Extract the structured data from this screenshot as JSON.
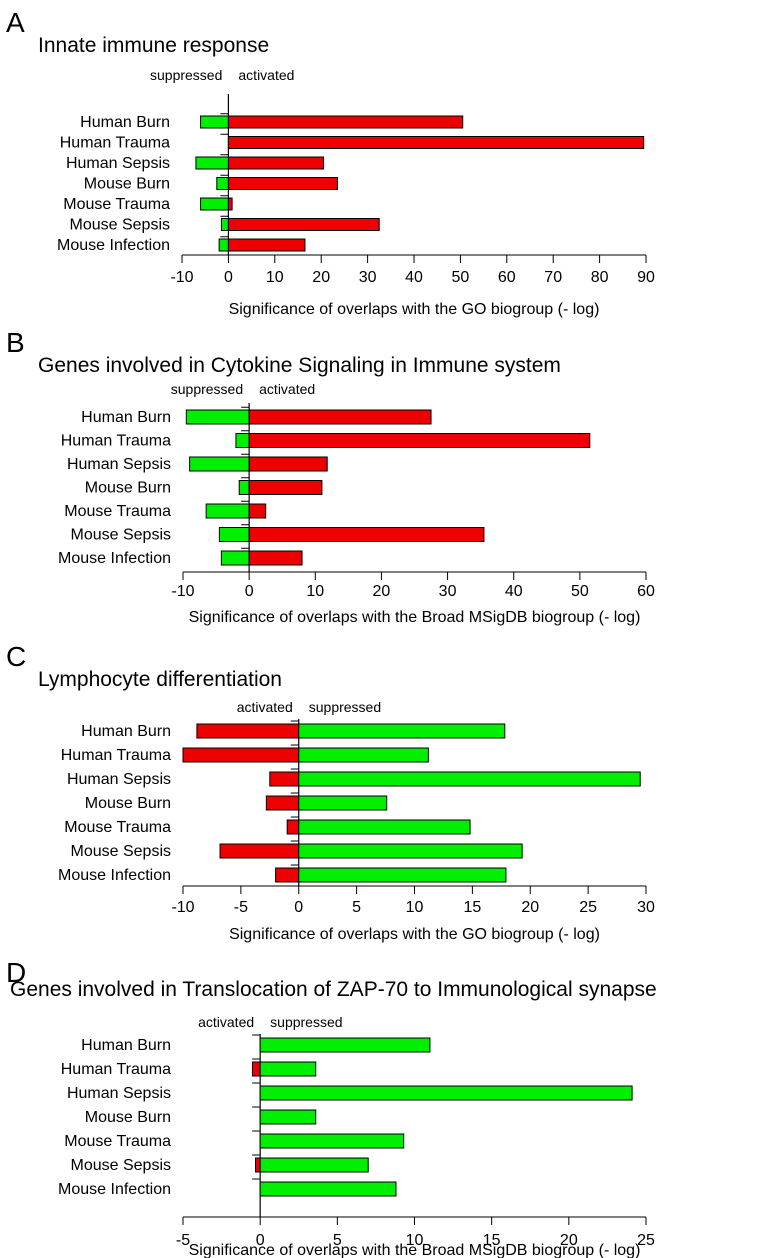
{
  "chart_data": [
    {
      "type": "bar",
      "orientation": "horizontal",
      "panel": "A",
      "title": "Innate immune response",
      "categories": [
        "Human Burn",
        "Human Trauma",
        "Human Sepsis",
        "Mouse Burn",
        "Mouse Trauma",
        "Mouse Sepsis",
        "Mouse Infection"
      ],
      "series": [
        {
          "name": "suppressed",
          "color": "#00ee00",
          "values": [
            -6,
            0,
            -7,
            -2.5,
            -6,
            -1.5,
            -2
          ]
        },
        {
          "name": "activated",
          "color": "#ee0000",
          "values": [
            50.5,
            89.5,
            20.5,
            23.5,
            0.8,
            32.5,
            16.5
          ]
        }
      ],
      "left_label": "suppressed",
      "right_label": "activated",
      "xlabel": "Significance of overlaps with the GO biogroup (- log)",
      "xlim": [
        -10,
        90
      ],
      "xticks": [
        -10,
        0,
        10,
        20,
        30,
        40,
        50,
        60,
        70,
        80,
        90
      ]
    },
    {
      "type": "bar",
      "orientation": "horizontal",
      "panel": "B",
      "title": "Genes involved in Cytokine Signaling in Immune system",
      "categories": [
        "Human Burn",
        "Human Trauma",
        "Human Sepsis",
        "Mouse Burn",
        "Mouse Trauma",
        "Mouse Sepsis",
        "Mouse Infection"
      ],
      "series": [
        {
          "name": "suppressed",
          "color": "#00ee00",
          "values": [
            -9.5,
            -2,
            -9,
            -1.5,
            -6.5,
            -4.5,
            -4.2
          ]
        },
        {
          "name": "activated",
          "color": "#ee0000",
          "values": [
            27.5,
            51.5,
            11.8,
            11,
            2.5,
            35.5,
            8
          ]
        }
      ],
      "left_label": "suppressed",
      "right_label": "activated",
      "xlabel": "Significance of overlaps with the Broad MSigDB biogroup (- log)",
      "xlim": [
        -10,
        60
      ],
      "xticks": [
        -10,
        0,
        10,
        20,
        30,
        40,
        50,
        60
      ]
    },
    {
      "type": "bar",
      "orientation": "horizontal",
      "panel": "C",
      "title": "Lymphocyte differentiation",
      "categories": [
        "Human Burn",
        "Human Trauma",
        "Human Sepsis",
        "Mouse Burn",
        "Mouse Trauma",
        "Mouse Sepsis",
        "Mouse Infection"
      ],
      "series": [
        {
          "name": "activated",
          "color": "#ee0000",
          "values": [
            -8.8,
            -10,
            -2.5,
            -2.8,
            -1,
            -6.8,
            -2
          ]
        },
        {
          "name": "suppressed",
          "color": "#00ee00",
          "values": [
            17.8,
            11.2,
            29.5,
            7.6,
            14.8,
            19.3,
            17.9
          ]
        }
      ],
      "left_label": "activated",
      "right_label": "suppressed",
      "xlabel": "Significance of overlaps with the GO biogroup (- log)",
      "xlim": [
        -10,
        30
      ],
      "xticks": [
        -10,
        -5,
        0,
        5,
        10,
        15,
        20,
        25,
        30
      ]
    },
    {
      "type": "bar",
      "orientation": "horizontal",
      "panel": "D",
      "title": "Genes involved in Translocation of ZAP-70 to Immunological synapse",
      "categories": [
        "Human Burn",
        "Human Trauma",
        "Human Sepsis",
        "Mouse Burn",
        "Mouse Trauma",
        "Mouse Sepsis",
        "Mouse Infection"
      ],
      "series": [
        {
          "name": "activated",
          "color": "#ee0000",
          "values": [
            0,
            -0.5,
            0,
            0,
            0,
            -0.3,
            0
          ]
        },
        {
          "name": "suppressed",
          "color": "#00ee00",
          "values": [
            11,
            3.6,
            24.1,
            3.6,
            9.3,
            7,
            8.8
          ]
        }
      ],
      "left_label": "activated",
      "right_label": "suppressed",
      "xlabel": "Significance of overlaps with the Broad MSigDB biogroup (- log)",
      "xlim": [
        -5,
        25
      ],
      "xticks": [
        -5,
        0,
        5,
        10,
        15,
        20,
        25
      ]
    }
  ]
}
